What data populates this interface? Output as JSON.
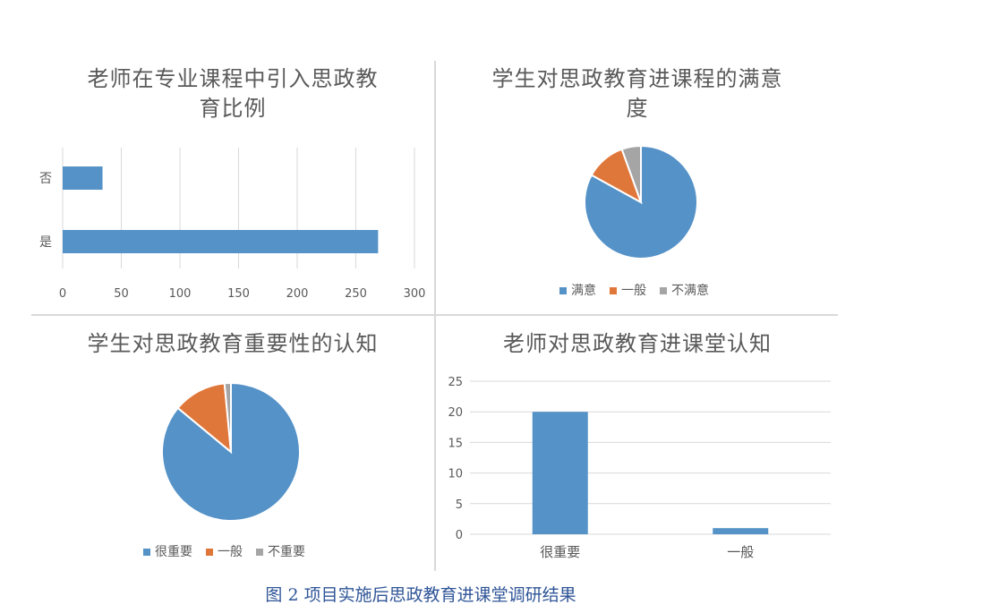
{
  "chart_data": [
    {
      "type": "bar",
      "orientation": "horizontal",
      "title": "老师在专业课程中引入思政教育比例",
      "title_lines": [
        "老师在专业课程中引入思政教",
        "育比例"
      ],
      "categories": [
        "否",
        "是"
      ],
      "values": [
        34,
        269
      ],
      "xlim": [
        0,
        300
      ],
      "ticks": [
        "0",
        "50",
        "100",
        "150",
        "200",
        "250",
        "300"
      ],
      "grid": "vertical",
      "color": "#5592c8"
    },
    {
      "type": "pie",
      "title": "学生对思政教育进课程的满意度",
      "title_lines": [
        "学生对思政教育进课程的满意",
        "度"
      ],
      "labels": [
        "满意",
        "一般",
        "不满意"
      ],
      "values": [
        83,
        11.5,
        5.5
      ],
      "colors": [
        "#5592c8",
        "#e0773a",
        "#a5a5a5"
      ],
      "legend": "bottom"
    },
    {
      "type": "pie",
      "title": "学生对思政教育重要性的认知",
      "title_lines": [
        "学生对思政教育重要性的认知"
      ],
      "labels": [
        "很重要",
        "一般",
        "不重要"
      ],
      "values": [
        86,
        12.5,
        1.5
      ],
      "colors": [
        "#5592c8",
        "#e0773a",
        "#a5a5a5"
      ],
      "legend": "bottom"
    },
    {
      "type": "bar",
      "orientation": "vertical",
      "title": "老师对思政教育进课堂认知",
      "title_lines": [
        "老师对思政教育进课堂认知"
      ],
      "categories": [
        "很重要",
        "一般"
      ],
      "values": [
        20,
        1
      ],
      "ylim": [
        0,
        25
      ],
      "ticks": [
        "0",
        "5",
        "10",
        "15",
        "20",
        "25"
      ],
      "grid": "horizontal",
      "color": "#5592c8"
    }
  ],
  "caption": "图 2 项目实施后思政教育进课堂调研结果"
}
